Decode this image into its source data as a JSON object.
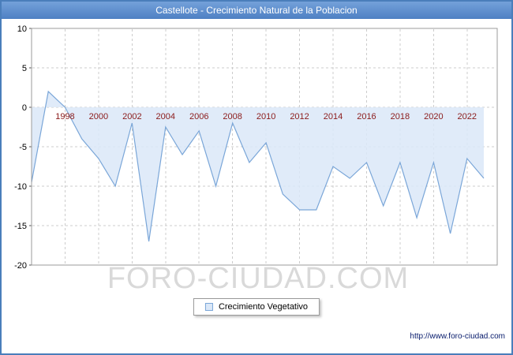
{
  "window": {
    "title": "Castellote - Crecimiento Natural de la Poblacion"
  },
  "chart_data": {
    "type": "area",
    "title": "Castellote - Crecimiento Natural de la Poblacion",
    "x": [
      1996,
      1997,
      1998,
      1999,
      2000,
      2001,
      2002,
      2003,
      2004,
      2005,
      2006,
      2007,
      2008,
      2009,
      2010,
      2011,
      2012,
      2013,
      2014,
      2015,
      2016,
      2017,
      2018,
      2019,
      2020,
      2021,
      2022,
      2023
    ],
    "series": [
      {
        "name": "Crecimiento Vegetativo",
        "values": [
          -9.5,
          2,
          0,
          -4,
          -6.5,
          -10,
          -2,
          -17,
          -2.5,
          -6,
          -3,
          -10,
          -2,
          -7,
          -4.5,
          -11,
          -13,
          -13,
          -7.5,
          -9,
          -7,
          -12.5,
          -7,
          -14,
          -7,
          -16,
          -6.5,
          -9
        ]
      }
    ],
    "xlim": [
      1996,
      2023.8
    ],
    "ylim": [
      -20,
      10
    ],
    "yticks": [
      10,
      5,
      0,
      -5,
      -10,
      -15,
      -20
    ],
    "xticks": [
      1998,
      2000,
      2002,
      2004,
      2006,
      2008,
      2010,
      2012,
      2014,
      2016,
      2018,
      2020,
      2022
    ],
    "grid": true,
    "legend_position": "bottom",
    "area_fill": "#dbe8f8",
    "line_color": "#7aa6d8",
    "grid_color": "#cccccc",
    "plot_border_color": "#9b9b9b",
    "tick_label_color_x": "#8b1a1a",
    "tick_label_color_y": "#000000"
  },
  "legend": {
    "items": [
      {
        "label": "Crecimiento Vegetativo",
        "swatch_fill": "#dbe8f8",
        "swatch_border": "#7aa6d8"
      }
    ]
  },
  "watermark": "FORO-CIUDAD.COM",
  "footer": {
    "link": "http://www.foro-ciudad.com"
  }
}
